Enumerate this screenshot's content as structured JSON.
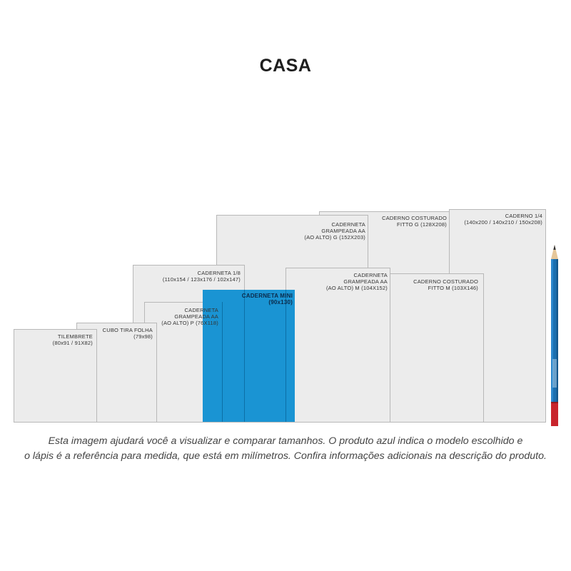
{
  "title": "CASA",
  "caption": {
    "line1": "Esta imagem ajudará você a visualizar e comparar tamanhos. O produto azul indica o modelo escolhido e",
    "line2": "o lápis é a referência para medida, que está em milímetros. Confira informações adicionais na descrição do produto."
  },
  "items": {
    "caderno_14": {
      "name": "CADERNO 1/4",
      "dims": "(140x200 / 140x210 / 150x208)"
    },
    "caderno_costurado_g": {
      "name": "CADERNO COSTURADO",
      "dims": "FITTO G (128x208)"
    },
    "caderneta_grampeada_g": {
      "name1": "CADERNETA",
      "name2": "GRAMPEADA AA",
      "dims": "(AO ALTO) G (152x203)"
    },
    "caderno_costurado_m": {
      "name": "CADERNO COSTURADO",
      "dims": "FITTO M (103x146)"
    },
    "caderneta_grampeada_m": {
      "name1": "CADERNETA",
      "name2": "GRAMPEADA AA",
      "dims": "(AO ALTO) M (104x152)"
    },
    "caderneta_18": {
      "name": "CADERNETA 1/8",
      "dims": "(110x154 / 123x176 / 102x147)"
    },
    "caderneta_mini": {
      "name": "CADERNETA MINI",
      "dims": "(90x130)"
    },
    "caderneta_grampeada_p": {
      "name1": "CADERNETA",
      "name2": "GRAMPEADA AA",
      "dims": "(AO ALTO) P (76x118)"
    },
    "cubo_tira_folha": {
      "name": "CUBO TIRA FOLHA",
      "dims": "(79x98)"
    },
    "tilembrete": {
      "name": "TILEMBRETE",
      "dims": "(80x91 / 91X82)"
    }
  },
  "colors": {
    "selected": "#1a94d3",
    "box": "#ececec",
    "border": "#b8b8b8",
    "pencil": "#1b6fb0",
    "pencil_tip": "#c8242c"
  }
}
